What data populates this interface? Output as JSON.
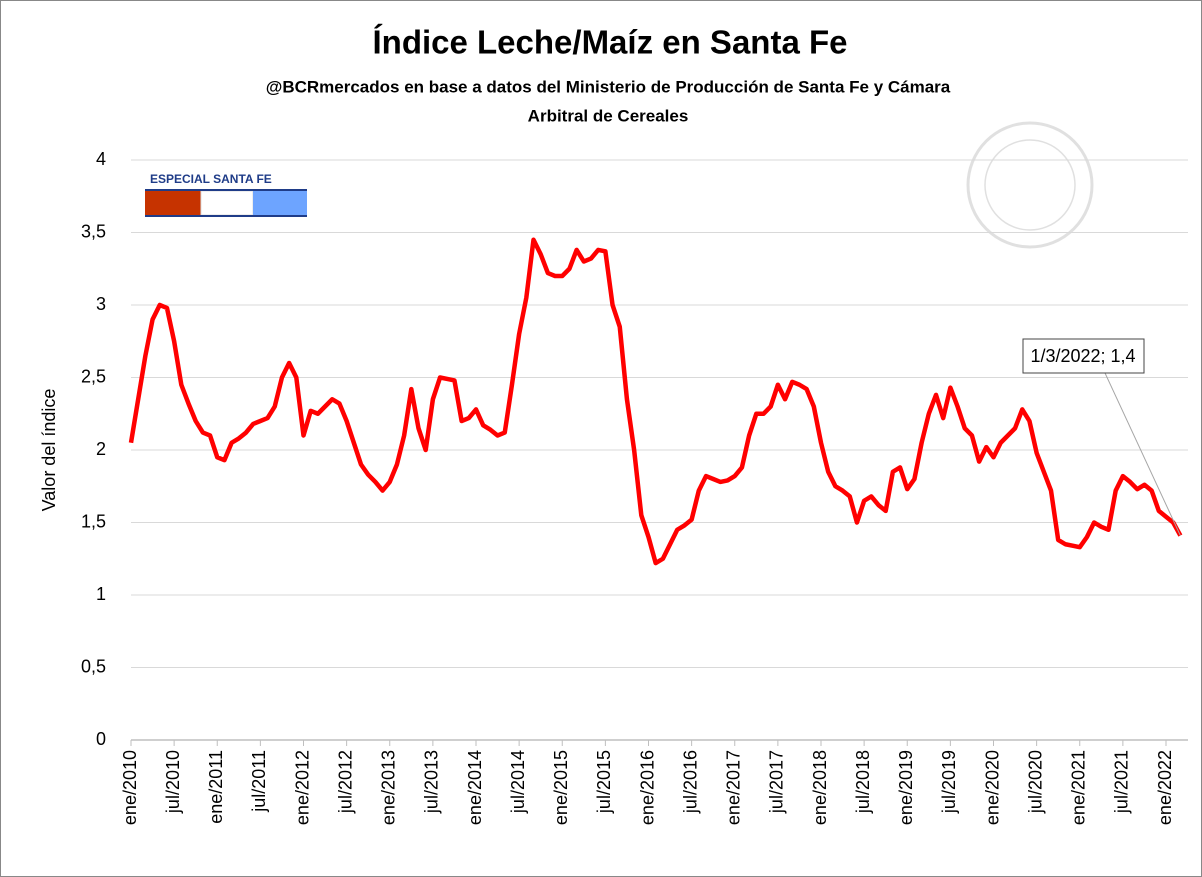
{
  "chart_data": {
    "type": "line",
    "title": "Índice Leche/Maíz en Santa Fe",
    "subtitle": [
      "@BCRmercados  en base a datos del Ministerio de Producción  de Santa Fe y Cámara",
      "Arbitral  de Cereales"
    ],
    "badge": "ESPECIAL SANTA FE",
    "y_label": "Valor del índice",
    "annotation": "1/3/2022; 1,4",
    "color": "#ff0000",
    "grid": true,
    "ylim": [
      0,
      4
    ],
    "yticks": [
      0,
      {
        "value": 0.5,
        "label": "0,5"
      },
      1,
      {
        "value": 1.5,
        "label": "1,5"
      },
      2,
      {
        "value": 2.5,
        "label": "2,5"
      },
      3,
      {
        "value": 3.5,
        "label": "3,5"
      },
      4
    ],
    "categories": [
      "ene/2010",
      null,
      null,
      null,
      null,
      null,
      "jul/2010",
      null,
      null,
      null,
      null,
      null,
      "ene/2011",
      null,
      null,
      null,
      null,
      null,
      "jul/2011",
      null,
      null,
      null,
      null,
      null,
      "ene/2012",
      null,
      null,
      null,
      null,
      null,
      "jul/2012",
      null,
      null,
      null,
      null,
      null,
      "ene/2013",
      null,
      null,
      null,
      null,
      null,
      "jul/2013",
      null,
      null,
      null,
      null,
      null,
      "ene/2014",
      null,
      null,
      null,
      null,
      null,
      "jul/2014",
      null,
      null,
      null,
      null,
      null,
      "ene/2015",
      null,
      null,
      null,
      null,
      null,
      "jul/2015",
      null,
      null,
      null,
      null,
      null,
      "ene/2016",
      null,
      null,
      null,
      null,
      null,
      "jul/2016",
      null,
      null,
      null,
      null,
      null,
      "ene/2017",
      null,
      null,
      null,
      null,
      null,
      "jul/2017",
      null,
      null,
      null,
      null,
      null,
      "ene/2018",
      null,
      null,
      null,
      null,
      null,
      "jul/2018",
      null,
      null,
      null,
      null,
      null,
      "ene/2019",
      null,
      null,
      null,
      null,
      null,
      "jul/2019",
      null,
      null,
      null,
      null,
      null,
      "ene/2020",
      null,
      null,
      null,
      null,
      null,
      "jul/2020",
      null,
      null,
      null,
      null,
      null,
      "ene/2021",
      null,
      null,
      null,
      null,
      null,
      "jul/2021",
      null,
      null,
      null,
      null,
      null,
      "ene/2022",
      null,
      null
    ],
    "values": [
      2.05,
      2.35,
      2.65,
      2.9,
      3.0,
      2.98,
      2.75,
      2.45,
      2.32,
      2.2,
      2.12,
      2.1,
      1.95,
      1.93,
      2.05,
      2.08,
      2.12,
      2.18,
      2.2,
      2.22,
      2.3,
      2.5,
      2.6,
      2.5,
      2.1,
      2.27,
      2.25,
      2.3,
      2.35,
      2.32,
      2.2,
      2.05,
      1.9,
      1.83,
      1.78,
      1.72,
      1.78,
      1.9,
      2.1,
      2.42,
      2.15,
      2.0,
      2.35,
      2.5,
      2.49,
      2.48,
      2.2,
      2.22,
      2.28,
      2.17,
      2.14,
      2.1,
      2.12,
      2.45,
      2.8,
      3.05,
      3.45,
      3.35,
      3.22,
      3.2,
      3.2,
      3.25,
      3.38,
      3.3,
      3.32,
      3.38,
      3.37,
      3.0,
      2.85,
      2.35,
      2.0,
      1.55,
      1.4,
      1.22,
      1.25,
      1.35,
      1.45,
      1.48,
      1.52,
      1.72,
      1.82,
      1.8,
      1.78,
      1.79,
      1.82,
      1.88,
      2.1,
      2.25,
      2.25,
      2.3,
      2.45,
      2.35,
      2.47,
      2.45,
      2.42,
      2.3,
      2.05,
      1.85,
      1.75,
      1.72,
      1.68,
      1.5,
      1.65,
      1.68,
      1.62,
      1.58,
      1.85,
      1.88,
      1.73,
      1.8,
      2.05,
      2.25,
      2.38,
      2.22,
      2.43,
      2.3,
      2.15,
      2.1,
      1.92,
      2.02,
      1.95,
      2.05,
      2.1,
      2.15,
      2.28,
      2.2,
      1.98,
      1.85,
      1.72,
      1.38,
      1.35,
      1.34,
      1.33,
      1.4,
      1.5,
      1.47,
      1.45,
      1.72,
      1.82,
      1.78,
      1.73,
      1.76,
      1.72,
      1.58,
      1.54,
      1.5,
      1.41
    ]
  }
}
